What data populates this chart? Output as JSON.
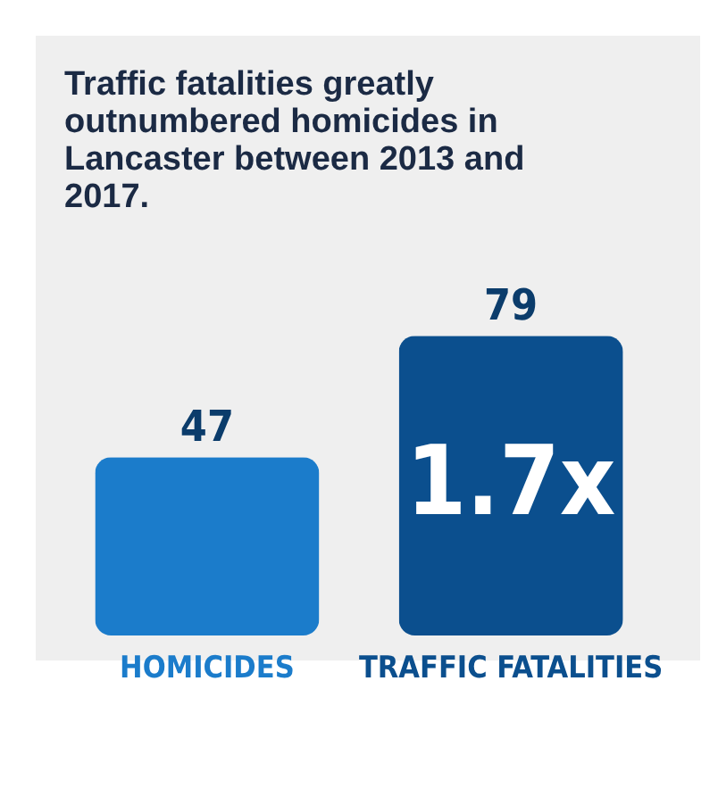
{
  "chart_data": {
    "type": "bar",
    "title": "Traffic fatalities greatly outnumbered homicides in Lancaster between 2013 and 2017.",
    "categories": [
      "HOMICIDES",
      "TRAFFIC FATALITIES"
    ],
    "values": [
      47,
      79
    ],
    "colors": [
      "#1b7ccb",
      "#0b4f8e"
    ],
    "data_labels": true,
    "annotations": [
      "1.7x"
    ]
  }
}
